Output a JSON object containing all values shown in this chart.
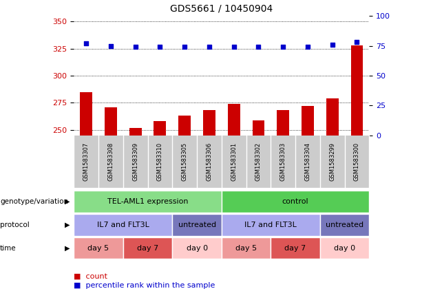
{
  "title": "GDS5661 / 10450904",
  "samples": [
    "GSM1583307",
    "GSM1583308",
    "GSM1583309",
    "GSM1583310",
    "GSM1583305",
    "GSM1583306",
    "GSM1583301",
    "GSM1583302",
    "GSM1583303",
    "GSM1583304",
    "GSM1583299",
    "GSM1583300"
  ],
  "count_values": [
    285,
    271,
    252,
    258,
    263,
    268,
    274,
    259,
    268,
    272,
    279,
    328
  ],
  "percentile_values": [
    77,
    75,
    74,
    74,
    74,
    74,
    74,
    74,
    74,
    74,
    76,
    78
  ],
  "ylim_left": [
    245,
    355
  ],
  "ylim_right": [
    0,
    100
  ],
  "yticks_left": [
    250,
    275,
    300,
    325,
    350
  ],
  "yticks_right": [
    0,
    25,
    50,
    75,
    100
  ],
  "bar_color": "#cc0000",
  "dot_color": "#0000cc",
  "plot_bg": "#ffffff",
  "genotype_groups": [
    {
      "label": "TEL-AML1 expression",
      "start": 0,
      "end": 6,
      "color": "#88dd88"
    },
    {
      "label": "control",
      "start": 6,
      "end": 12,
      "color": "#55cc55"
    }
  ],
  "protocol_groups": [
    {
      "label": "IL7 and FLT3L",
      "start": 0,
      "end": 4,
      "color": "#aaaaee"
    },
    {
      "label": "untreated",
      "start": 4,
      "end": 6,
      "color": "#7777bb"
    },
    {
      "label": "IL7 and FLT3L",
      "start": 6,
      "end": 10,
      "color": "#aaaaee"
    },
    {
      "label": "untreated",
      "start": 10,
      "end": 12,
      "color": "#7777bb"
    }
  ],
  "time_groups": [
    {
      "label": "day 5",
      "start": 0,
      "end": 2,
      "color": "#ee9999"
    },
    {
      "label": "day 7",
      "start": 2,
      "end": 4,
      "color": "#dd5555"
    },
    {
      "label": "day 0",
      "start": 4,
      "end": 6,
      "color": "#ffcccc"
    },
    {
      "label": "day 5",
      "start": 6,
      "end": 8,
      "color": "#ee9999"
    },
    {
      "label": "day 7",
      "start": 8,
      "end": 10,
      "color": "#dd5555"
    },
    {
      "label": "day 0",
      "start": 10,
      "end": 12,
      "color": "#ffcccc"
    }
  ],
  "row_labels": [
    "genotype/variation",
    "protocol",
    "time"
  ],
  "sample_bg_color": "#cccccc"
}
